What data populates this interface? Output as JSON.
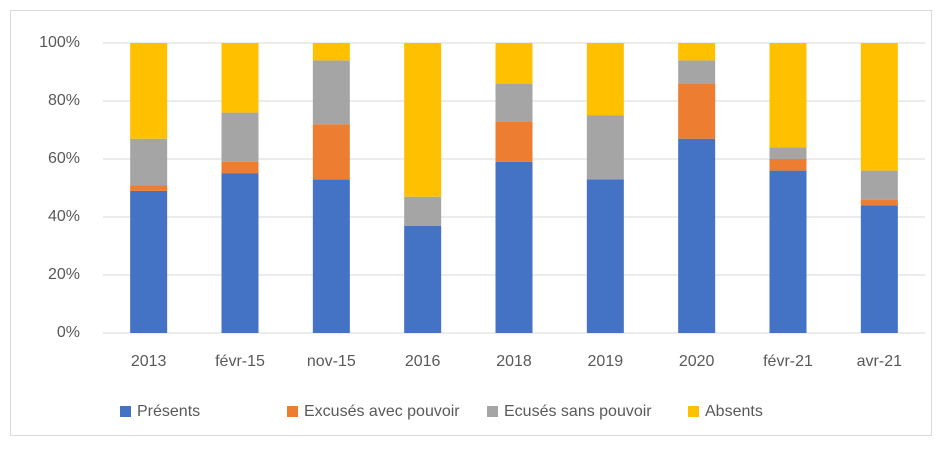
{
  "chart_data": {
    "type": "stacked_bar",
    "categories": [
      "2013",
      "févr-15",
      "nov-15",
      "2016",
      "2018",
      "2019",
      "2020",
      "févr-21",
      "avr-21"
    ],
    "series": [
      {
        "name": "Présents",
        "color": "#4472c4",
        "values": [
          49,
          55,
          53,
          37,
          59,
          53,
          67,
          56,
          44
        ]
      },
      {
        "name": "Excusés avec pouvoir",
        "color": "#ed7d31",
        "values": [
          2,
          4,
          19,
          0,
          14,
          0,
          19,
          4,
          2
        ]
      },
      {
        "name": "Ecusés sans pouvoir",
        "color": "#a5a5a5",
        "values": [
          16,
          17,
          22,
          10,
          13,
          22,
          8,
          4,
          10
        ]
      },
      {
        "name": "Absents",
        "color": "#ffc000",
        "values": [
          33,
          24,
          6,
          53,
          14,
          25,
          6,
          36,
          44
        ]
      }
    ],
    "ylim": [
      0,
      100
    ],
    "yticks": [
      {
        "value": 0,
        "label": "0%"
      },
      {
        "value": 20,
        "label": "20%"
      },
      {
        "value": 40,
        "label": "40%"
      },
      {
        "value": 60,
        "label": "60%"
      },
      {
        "value": 80,
        "label": "80%"
      },
      {
        "value": 100,
        "label": "100%"
      }
    ],
    "grid": true,
    "legend": "bottom"
  }
}
